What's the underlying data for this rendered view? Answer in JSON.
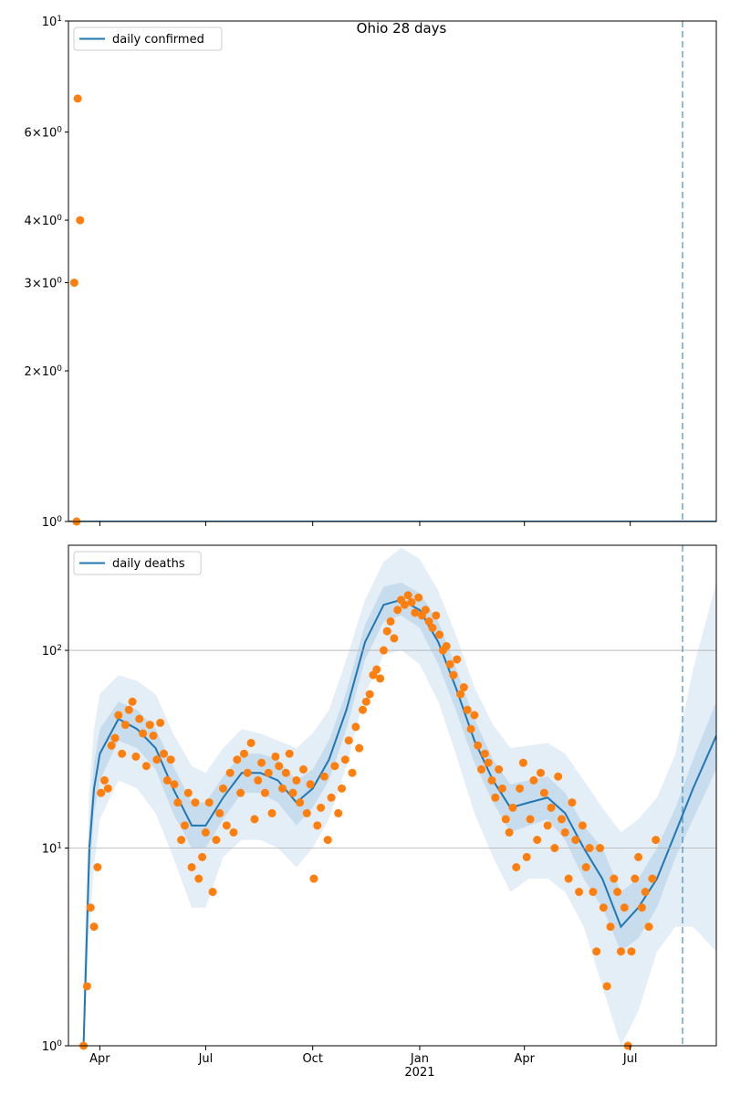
{
  "chart_data": [
    {
      "type": "line",
      "title": "Ohio 28 days",
      "log_y": true,
      "legend_loc": "upper left",
      "grid": false,
      "xlim": [
        0,
        557
      ],
      "ylim": [
        1,
        10
      ],
      "yticks": [
        {
          "value": 1,
          "label": "10^0"
        },
        {
          "value": 2,
          "label": "2×10^0"
        },
        {
          "value": 3,
          "label": "3×10^0"
        },
        {
          "value": 4,
          "label": "4×10^0"
        },
        {
          "value": 6,
          "label": "6×10^0"
        },
        {
          "value": 10,
          "label": "10^1"
        }
      ],
      "series": [
        {
          "name": "daily confirmed",
          "color": "#1f77b4",
          "x": [
            0,
            557
          ],
          "values": [
            1,
            1
          ]
        }
      ],
      "points": {
        "color": "#ff7f0e",
        "x": [
          5,
          7,
          8,
          10
        ],
        "values": [
          3,
          1,
          7,
          4
        ]
      },
      "vline": 528
    },
    {
      "type": "line",
      "log_y": true,
      "legend_loc": "upper left",
      "grid": true,
      "xlim": [
        0,
        557
      ],
      "ylim": [
        1,
        340
      ],
      "xticks": [
        {
          "value": 27,
          "label": "Apr"
        },
        {
          "value": 118,
          "label": "Jul"
        },
        {
          "value": 210,
          "label": "Oct"
        },
        {
          "value": 302,
          "label": "Jan\n2021"
        },
        {
          "value": 392,
          "label": "Apr"
        },
        {
          "value": 483,
          "label": "Jul"
        }
      ],
      "yticks": [
        {
          "value": 1,
          "label": "10^0"
        },
        {
          "value": 10,
          "label": "10^1"
        },
        {
          "value": 100,
          "label": "10^2"
        }
      ],
      "series": [
        {
          "name": "daily deaths",
          "color": "#1f77b4",
          "x": [
            13,
            18,
            22,
            27,
            43,
            59,
            75,
            90,
            106,
            118,
            133,
            149,
            165,
            180,
            196,
            210,
            224,
            239,
            255,
            271,
            286,
            302,
            318,
            333,
            349,
            365,
            380,
            396,
            412,
            427,
            443,
            459,
            475,
            490,
            506,
            522,
            537,
            557
          ],
          "values": [
            1,
            10,
            20,
            30,
            45,
            40,
            32,
            20,
            13,
            13,
            18,
            24,
            24,
            22,
            17,
            20,
            28,
            50,
            110,
            170,
            180,
            160,
            110,
            65,
            35,
            22,
            16,
            17,
            18,
            15,
            10,
            7,
            4,
            5,
            7,
            12,
            20,
            37
          ]
        }
      ],
      "bands": [
        {
          "color": "#1f77b4",
          "opacity": 0.12,
          "lower": [
            1,
            4,
            8,
            14,
            22,
            20,
            15,
            9,
            5,
            5,
            9,
            11,
            11,
            10,
            8,
            10,
            14,
            26,
            60,
            95,
            100,
            85,
            55,
            30,
            15,
            9,
            6,
            7,
            7,
            6,
            4,
            2,
            1,
            1.5,
            3,
            4,
            4,
            3
          ],
          "upper": [
            2,
            20,
            40,
            60,
            75,
            70,
            60,
            38,
            26,
            24,
            32,
            40,
            38,
            35,
            32,
            38,
            50,
            90,
            180,
            280,
            330,
            290,
            200,
            120,
            65,
            42,
            32,
            33,
            34,
            30,
            22,
            16,
            12,
            14,
            18,
            30,
            80,
            220
          ]
        },
        {
          "color": "#1f77b4",
          "opacity": 0.15,
          "lower": [
            1,
            7,
            15,
            22,
            35,
            32,
            25,
            15,
            10,
            10,
            14,
            19,
            19,
            17,
            13,
            16,
            22,
            40,
            90,
            140,
            150,
            130,
            85,
            50,
            27,
            17,
            12,
            13,
            14,
            11,
            7,
            5,
            3,
            3.5,
            5,
            9,
            14,
            25
          ],
          "upper": [
            1.5,
            13,
            27,
            40,
            55,
            50,
            40,
            26,
            17,
            17,
            23,
            30,
            30,
            28,
            22,
            25,
            35,
            62,
            135,
            210,
            220,
            195,
            140,
            82,
            45,
            28,
            21,
            22,
            23,
            19,
            13,
            10,
            6,
            7,
            10,
            16,
            28,
            55
          ]
        }
      ],
      "points": {
        "color": "#ff7f0e",
        "x": [
          13,
          16,
          19,
          22,
          25,
          28,
          31,
          34,
          37,
          40,
          43,
          46,
          49,
          52,
          55,
          58,
          61,
          64,
          67,
          70,
          73,
          76,
          79,
          82,
          85,
          88,
          91,
          94,
          97,
          100,
          103,
          106,
          109,
          112,
          115,
          118,
          121,
          124,
          127,
          130,
          133,
          136,
          139,
          142,
          145,
          148,
          151,
          154,
          157,
          160,
          163,
          166,
          169,
          172,
          175,
          178,
          181,
          184,
          187,
          190,
          193,
          196,
          199,
          202,
          205,
          208,
          211,
          214,
          217,
          220,
          223,
          226,
          229,
          232,
          235,
          238,
          241,
          244,
          247,
          250,
          253,
          256,
          259,
          262,
          265,
          268,
          271,
          274,
          277,
          280,
          283,
          286,
          289,
          292,
          295,
          298,
          301,
          304,
          307,
          310,
          313,
          316,
          319,
          322,
          325,
          328,
          331,
          334,
          337,
          340,
          343,
          346,
          349,
          352,
          355,
          358,
          361,
          364,
          367,
          370,
          373,
          376,
          379,
          382,
          385,
          388,
          391,
          394,
          397,
          400,
          403,
          406,
          409,
          412,
          415,
          418,
          421,
          424,
          427,
          430,
          433,
          436,
          439,
          442,
          445,
          448,
          451,
          454,
          457,
          460,
          463,
          466,
          469,
          472,
          475,
          478,
          481,
          484,
          487,
          490,
          493,
          496,
          499,
          502,
          505
        ],
        "values": [
          1,
          2,
          5,
          4,
          8,
          19,
          22,
          20,
          33,
          36,
          47,
          30,
          42,
          50,
          55,
          29,
          45,
          38,
          26,
          42,
          37,
          28,
          43,
          30,
          22,
          28,
          21,
          17,
          11,
          13,
          19,
          8,
          17,
          7,
          9,
          12,
          17,
          6,
          11,
          15,
          20,
          13,
          24,
          12,
          28,
          19,
          30,
          24,
          34,
          14,
          22,
          27,
          19,
          24,
          15,
          29,
          26,
          20,
          24,
          30,
          19,
          22,
          17,
          25,
          15,
          21,
          7,
          13,
          16,
          23,
          11,
          18,
          26,
          15,
          20,
          28,
          35,
          24,
          41,
          32,
          50,
          55,
          60,
          75,
          80,
          72,
          100,
          125,
          140,
          115,
          160,
          180,
          170,
          190,
          175,
          155,
          185,
          150,
          160,
          140,
          130,
          150,
          120,
          100,
          105,
          85,
          75,
          90,
          60,
          65,
          50,
          40,
          47,
          33,
          25,
          30,
          27,
          22,
          18,
          25,
          20,
          14,
          12,
          16,
          8,
          20,
          27,
          9,
          14,
          22,
          11,
          24,
          19,
          13,
          16,
          10,
          23,
          14,
          12,
          7,
          17,
          11,
          6,
          13,
          8,
          10,
          6,
          3,
          10,
          5,
          2,
          4,
          7,
          6,
          3,
          5,
          1,
          3,
          7,
          9,
          5,
          6,
          4,
          7,
          11
        ]
      },
      "vline": 528
    }
  ]
}
